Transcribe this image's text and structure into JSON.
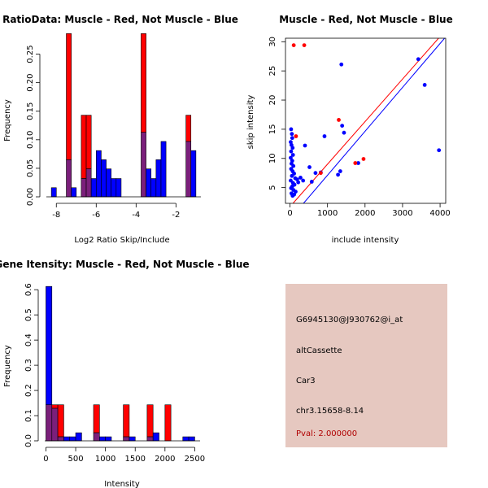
{
  "colors": {
    "muscle": "#ff0000",
    "not_muscle": "#0000ff",
    "overlap": "#7b1f7b",
    "info_bg": "#e6c8c0",
    "pval": "#b00000"
  },
  "chart_data": [
    {
      "type": "bar",
      "id": "ratio",
      "title": "RatioData: Muscle - Red, Not Muscle - Blue",
      "xlabel": "Log2 Ratio Skip/Include",
      "ylabel": "Frequency",
      "xlim": [
        -8.5,
        -0.75
      ],
      "ylim": [
        0,
        0.285
      ],
      "xticks": [
        -8,
        -6,
        -4,
        -2
      ],
      "yticks": [
        0.0,
        0.05,
        0.1,
        0.15,
        0.2,
        0.25
      ],
      "ytick_labels": [
        "0.00",
        "0.05",
        "0.10",
        "0.15",
        "0.20",
        "0.25"
      ],
      "series": [
        {
          "name": "Muscle",
          "color": "red",
          "bins": [
            {
              "x0": -7.5,
              "x1": -7.25,
              "v": 0.286
            },
            {
              "x0": -6.75,
              "x1": -6.5,
              "v": 0.143
            },
            {
              "x0": -6.5,
              "x1": -6.25,
              "v": 0.143
            },
            {
              "x0": -3.75,
              "x1": -3.5,
              "v": 0.286
            },
            {
              "x0": -1.5,
              "x1": -1.25,
              "v": 0.143
            }
          ]
        },
        {
          "name": "Not Muscle",
          "color": "blue",
          "bins": [
            {
              "x0": -8.25,
              "x1": -8.0,
              "v": 0.016
            },
            {
              "x0": -7.5,
              "x1": -7.25,
              "v": 0.065
            },
            {
              "x0": -7.25,
              "x1": -7.0,
              "v": 0.016
            },
            {
              "x0": -6.75,
              "x1": -6.5,
              "v": 0.032
            },
            {
              "x0": -6.5,
              "x1": -6.25,
              "v": 0.049
            },
            {
              "x0": -6.25,
              "x1": -6.0,
              "v": 0.032
            },
            {
              "x0": -6.0,
              "x1": -5.75,
              "v": 0.081
            },
            {
              "x0": -5.75,
              "x1": -5.5,
              "v": 0.065
            },
            {
              "x0": -5.5,
              "x1": -5.25,
              "v": 0.049
            },
            {
              "x0": -5.25,
              "x1": -5.0,
              "v": 0.032
            },
            {
              "x0": -5.0,
              "x1": -4.75,
              "v": 0.032
            },
            {
              "x0": -3.75,
              "x1": -3.5,
              "v": 0.113
            },
            {
              "x0": -3.5,
              "x1": -3.25,
              "v": 0.049
            },
            {
              "x0": -3.25,
              "x1": -3.0,
              "v": 0.032
            },
            {
              "x0": -3.0,
              "x1": -2.75,
              "v": 0.065
            },
            {
              "x0": -2.75,
              "x1": -2.5,
              "v": 0.097
            },
            {
              "x0": -1.5,
              "x1": -1.25,
              "v": 0.097
            },
            {
              "x0": -1.25,
              "x1": -1.0,
              "v": 0.081
            }
          ]
        }
      ]
    },
    {
      "type": "scatter",
      "id": "scatter",
      "title": "Muscle - Red, Not Muscle - Blue",
      "xlabel": "include intensity",
      "ylabel": "skip intensity",
      "xlim": [
        -120,
        4150
      ],
      "ylim": [
        2.3,
        30.6
      ],
      "xticks": [
        0,
        1000,
        2000,
        3000,
        4000
      ],
      "yticks": [
        5,
        10,
        15,
        20,
        25,
        30
      ],
      "series": [
        {
          "name": "Not Muscle",
          "color": "blue",
          "points": [
            [
              30,
              15
            ],
            [
              50,
              14.2
            ],
            [
              60,
              13.5
            ],
            [
              20,
              12.8
            ],
            [
              40,
              12.3
            ],
            [
              70,
              11.8
            ],
            [
              30,
              11.2
            ],
            [
              80,
              10.6
            ],
            [
              20,
              10.1
            ],
            [
              60,
              9.6
            ],
            [
              40,
              9.1
            ],
            [
              90,
              8.7
            ],
            [
              30,
              8.2
            ],
            [
              70,
              7.8
            ],
            [
              110,
              7.4
            ],
            [
              50,
              7.0
            ],
            [
              140,
              6.6
            ],
            [
              20,
              6.2
            ],
            [
              80,
              5.8
            ],
            [
              120,
              5.5
            ],
            [
              60,
              5.2
            ],
            [
              30,
              4.9
            ],
            [
              90,
              4.6
            ],
            [
              150,
              4.3
            ],
            [
              40,
              4.0
            ],
            [
              110,
              3.8
            ],
            [
              70,
              3.6
            ],
            [
              190,
              6.4
            ],
            [
              220,
              5.9
            ],
            [
              280,
              6.7
            ],
            [
              350,
              6.2
            ],
            [
              400,
              12.2
            ],
            [
              520,
              8.5
            ],
            [
              580,
              6.0
            ],
            [
              680,
              7.5
            ],
            [
              820,
              7.6
            ],
            [
              920,
              13.8
            ],
            [
              1280,
              7.2
            ],
            [
              1340,
              7.8
            ],
            [
              1370,
              26.1
            ],
            [
              1390,
              15.6
            ],
            [
              1440,
              14.4
            ],
            [
              1820,
              9.2
            ],
            [
              3420,
              27.0
            ],
            [
              3590,
              22.6
            ],
            [
              3970,
              11.4
            ]
          ]
        },
        {
          "name": "Muscle",
          "color": "red",
          "points": [
            [
              100,
              29.4
            ],
            [
              380,
              29.4
            ],
            [
              160,
              13.8
            ],
            [
              820,
              7.5
            ],
            [
              1300,
              16.6
            ],
            [
              1740,
              9.2
            ],
            [
              1960,
              9.9
            ]
          ]
        }
      ],
      "lines": [
        {
          "name": "red-fit",
          "color": "red",
          "from": [
            80,
            2.3
          ],
          "to": [
            3960,
            30.6
          ]
        },
        {
          "name": "blue-fit",
          "color": "blue",
          "from": [
            360,
            2.3
          ],
          "to": [
            4120,
            30.6
          ]
        }
      ]
    },
    {
      "type": "bar",
      "id": "intensity",
      "title": "Gene Itensity: Muscle - Red, Not Muscle - Blue",
      "xlabel": "Intensity",
      "ylabel": "Frequency",
      "xlim": [
        -20,
        2590
      ],
      "ylim": [
        0,
        0.62
      ],
      "xticks": [
        0,
        500,
        1000,
        1500,
        2000,
        2500
      ],
      "yticks": [
        0.0,
        0.1,
        0.2,
        0.3,
        0.4,
        0.5,
        0.6
      ],
      "ytick_labels": [
        "0.0",
        "0.1",
        "0.2",
        "0.3",
        "0.4",
        "0.5",
        "0.6"
      ],
      "series": [
        {
          "name": "Muscle",
          "color": "red",
          "bins": [
            {
              "x0": 0,
              "x1": 100,
              "v": 0.143
            },
            {
              "x0": 100,
              "x1": 200,
              "v": 0.143
            },
            {
              "x0": 200,
              "x1": 300,
              "v": 0.143
            },
            {
              "x0": 800,
              "x1": 900,
              "v": 0.143
            },
            {
              "x0": 1300,
              "x1": 1400,
              "v": 0.143
            },
            {
              "x0": 1700,
              "x1": 1800,
              "v": 0.143
            },
            {
              "x0": 2000,
              "x1": 2100,
              "v": 0.143
            }
          ]
        },
        {
          "name": "Not Muscle",
          "color": "blue",
          "bins": [
            {
              "x0": 0,
              "x1": 100,
              "v": 0.613
            },
            {
              "x0": 100,
              "x1": 200,
              "v": 0.129
            },
            {
              "x0": 200,
              "x1": 300,
              "v": 0.016
            },
            {
              "x0": 300,
              "x1": 400,
              "v": 0.016
            },
            {
              "x0": 400,
              "x1": 500,
              "v": 0.016
            },
            {
              "x0": 500,
              "x1": 600,
              "v": 0.032
            },
            {
              "x0": 800,
              "x1": 900,
              "v": 0.032
            },
            {
              "x0": 900,
              "x1": 1000,
              "v": 0.016
            },
            {
              "x0": 1000,
              "x1": 1100,
              "v": 0.016
            },
            {
              "x0": 1300,
              "x1": 1400,
              "v": 0.016
            },
            {
              "x0": 1400,
              "x1": 1500,
              "v": 0.016
            },
            {
              "x0": 1700,
              "x1": 1800,
              "v": 0.016
            },
            {
              "x0": 1800,
              "x1": 1900,
              "v": 0.032
            },
            {
              "x0": 2300,
              "x1": 2400,
              "v": 0.016
            },
            {
              "x0": 2400,
              "x1": 2500,
              "v": 0.016
            }
          ]
        }
      ]
    }
  ],
  "info": {
    "probe_id": "G6945130@J930762@i_at",
    "event_type": "altCassette",
    "gene": "Car3",
    "location": "chr3.15658-8.14",
    "pval": "Pval: 2.000000"
  }
}
